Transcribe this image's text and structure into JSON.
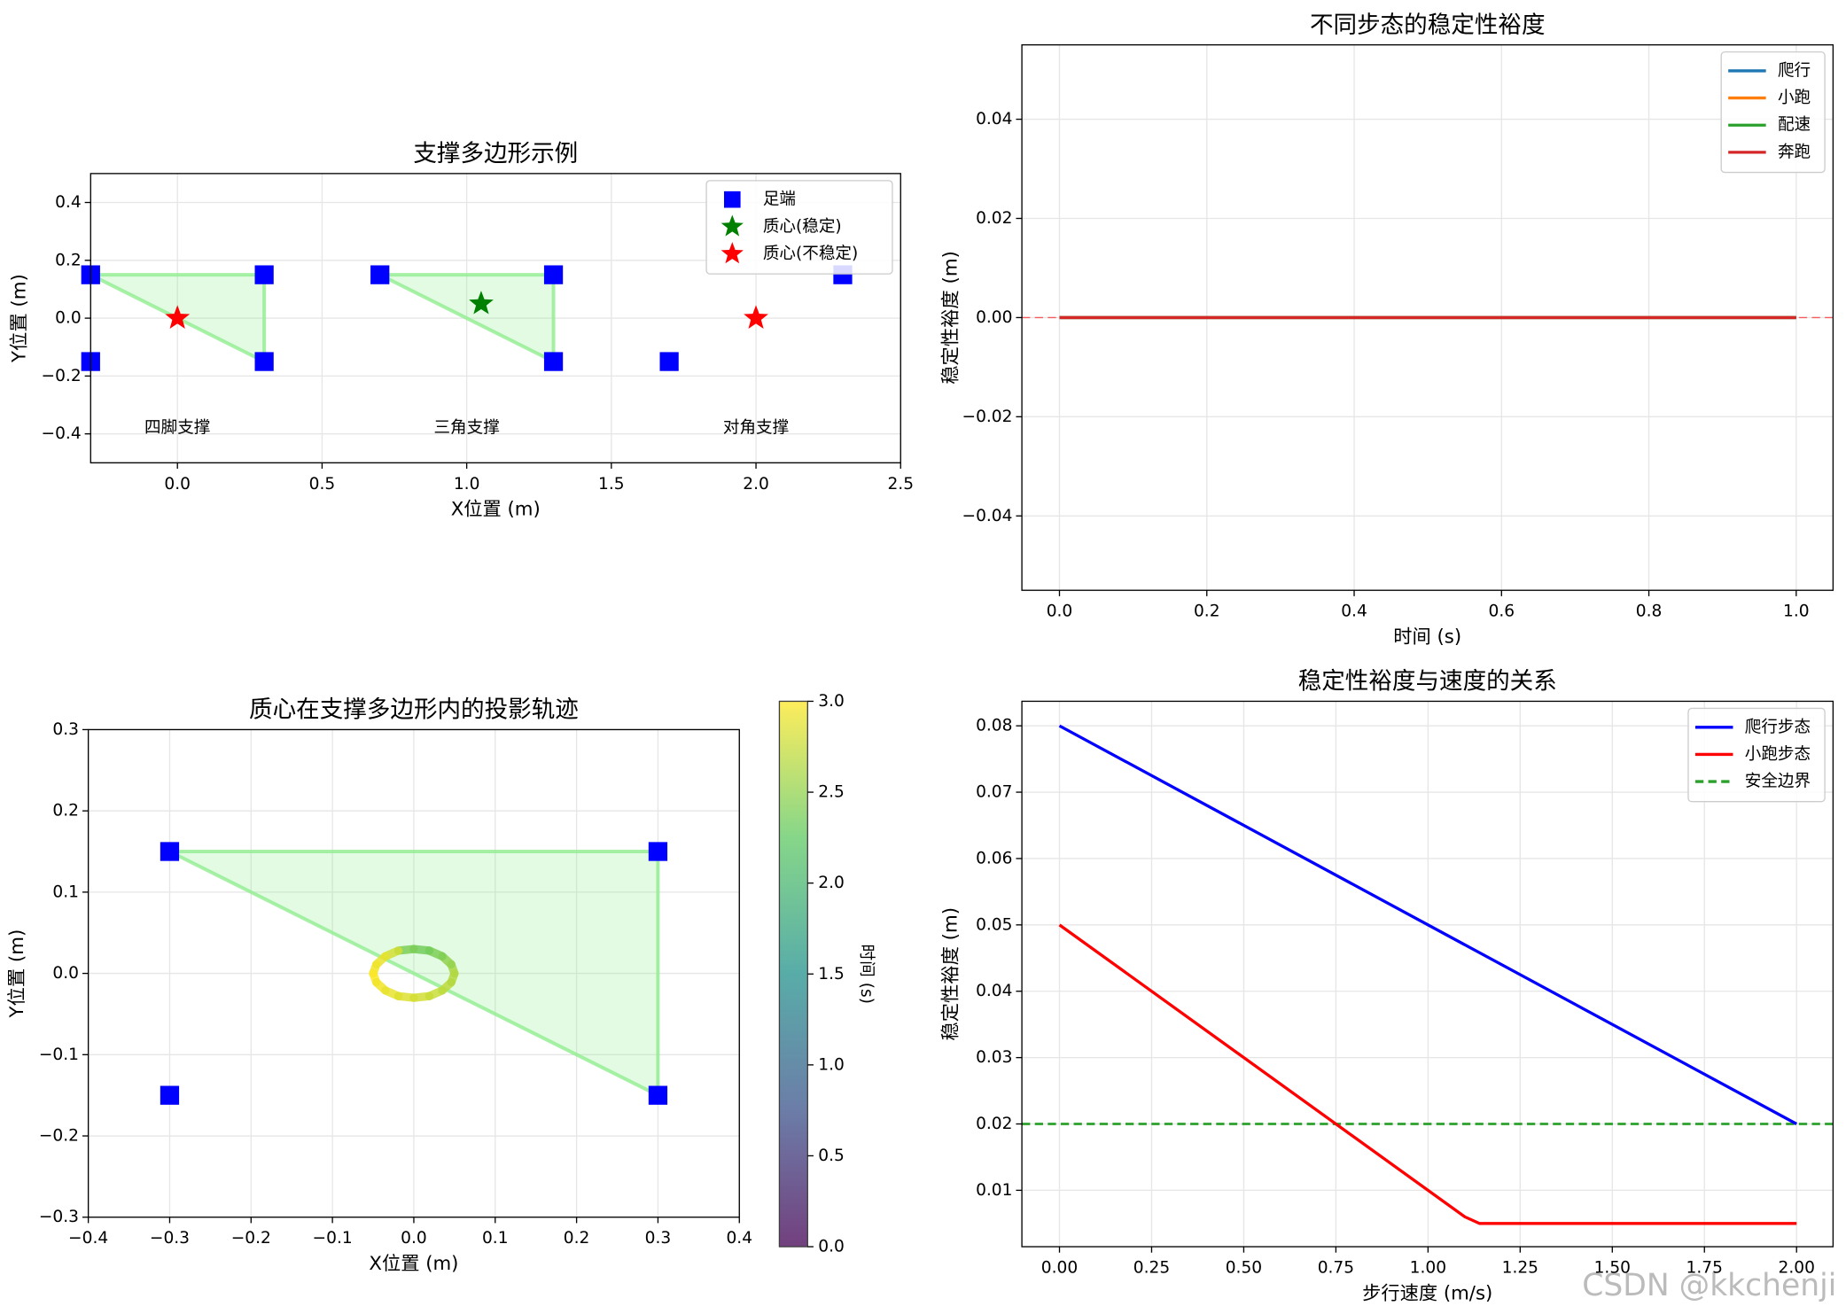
{
  "chart_data": [
    {
      "type": "scatter",
      "title": "支撑多边形示例",
      "xlabel": "X位置 (m)",
      "ylabel": "Y位置 (m)",
      "xlim": [
        -0.3,
        2.5
      ],
      "ylim": [
        -0.5,
        0.5
      ],
      "xticks": [
        {
          "value": 0,
          "label": "0.0"
        },
        {
          "value": 0.5,
          "label": "0.5"
        },
        {
          "value": 1,
          "label": "1.0"
        },
        1.5,
        {
          "value": 2,
          "label": "2.0"
        },
        2.5
      ],
      "yticks": [
        {
          "value": -0.4,
          "label": "−0.4"
        },
        {
          "value": -0.2,
          "label": "−0.2"
        },
        {
          "value": 0,
          "label": "0.0"
        },
        0.2,
        0.4
      ],
      "grid": true,
      "legend": "upper right",
      "polygon_color": "#90ee90",
      "polygons": [
        {
          "x": [
            -0.3,
            0.3,
            0.3
          ],
          "y": [
            0.15,
            0.15,
            -0.15
          ]
        },
        {
          "x": [
            0.7,
            1.3,
            1.3
          ],
          "y": [
            0.15,
            0.15,
            -0.15
          ]
        }
      ],
      "series": [
        {
          "name": "足端",
          "color": "#0000ff",
          "marker": "square",
          "x": [
            -0.3,
            0.3,
            0.3,
            -0.3,
            0.7,
            1.3,
            1.3,
            1.7,
            2.3
          ],
          "y": [
            0.15,
            0.15,
            -0.15,
            -0.15,
            0.15,
            0.15,
            -0.15,
            -0.15,
            0.15
          ]
        },
        {
          "name": "质心(稳定)",
          "color": "#008000",
          "marker": "star",
          "x": [
            1.05
          ],
          "y": [
            0.05
          ]
        },
        {
          "name": "质心(不稳定)",
          "color": "#ff0000",
          "marker": "star",
          "x": [
            0,
            2
          ],
          "y": [
            0,
            0
          ]
        }
      ],
      "annotations": [
        {
          "text": "四脚支撑",
          "x": 0,
          "y": -0.38
        },
        {
          "text": "三角支撑",
          "x": 1,
          "y": -0.38
        },
        {
          "text": "对角支撑",
          "x": 2,
          "y": -0.38
        }
      ]
    },
    {
      "type": "line",
      "title": "不同步态的稳定性裕度",
      "xlabel": "时间 (s)",
      "ylabel": "稳定性裕度 (m)",
      "xlim": [
        -0.051,
        1.05
      ],
      "ylim": [
        -0.055,
        0.055
      ],
      "xticks": [
        {
          "value": 0,
          "label": "0.0"
        },
        0.2,
        0.4,
        0.6,
        0.8,
        {
          "value": 1,
          "label": "1.0"
        }
      ],
      "yticks": [
        {
          "value": -0.04,
          "label": "−0.04"
        },
        {
          "value": -0.02,
          "label": "−0.02"
        },
        {
          "value": 0,
          "label": "0.00"
        },
        0.02,
        0.04
      ],
      "grid": true,
      "legend": "upper right",
      "x": [
        0,
        1
      ],
      "reference_line": {
        "value": 0,
        "color": "#ff0000",
        "style": "dashed"
      },
      "series": [
        {
          "name": "爬行",
          "color": "#1f77b4",
          "values": [
            0,
            0
          ]
        },
        {
          "name": "小跑",
          "color": "#ff7f0e",
          "values": [
            0,
            0
          ]
        },
        {
          "name": "配速",
          "color": "#2ca02c",
          "values": [
            0,
            0
          ]
        },
        {
          "name": "奔跑",
          "color": "#d62728",
          "values": [
            0,
            0
          ]
        }
      ]
    },
    {
      "type": "scatter",
      "title": "质心在支撑多边形内的投影轨迹",
      "xlabel": "X位置 (m)",
      "ylabel": "Y位置 (m)",
      "xlim": [
        -0.4,
        0.4
      ],
      "ylim": [
        -0.3,
        0.3
      ],
      "xticks": [
        {
          "value": -0.4,
          "label": "−0.4"
        },
        {
          "value": -0.3,
          "label": "−0.3"
        },
        {
          "value": -0.2,
          "label": "−0.2"
        },
        {
          "value": -0.1,
          "label": "−0.1"
        },
        {
          "value": 0,
          "label": "0.0"
        },
        0.1,
        0.2,
        0.3,
        0.4
      ],
      "yticks": [
        {
          "value": -0.3,
          "label": "−0.3"
        },
        {
          "value": -0.2,
          "label": "−0.2"
        },
        {
          "value": -0.1,
          "label": "−0.1"
        },
        {
          "value": 0,
          "label": "0.0"
        },
        0.1,
        0.2,
        0.3
      ],
      "grid": true,
      "polygon_color": "#90ee90",
      "polygons": [
        {
          "x": [
            -0.3,
            0.3,
            0.3
          ],
          "y": [
            0.15,
            0.15,
            -0.15
          ]
        }
      ],
      "series": [
        {
          "color": "#0000ff",
          "marker": "square",
          "x": [
            -0.3,
            0.3,
            0.3,
            -0.3
          ],
          "y": [
            0.15,
            0.15,
            -0.15,
            -0.15
          ]
        },
        {
          "marker": "trail",
          "colormap": "viridis",
          "x": [
            0.05,
            0.046,
            0.035,
            0.019,
            0,
            -0.019,
            -0.035,
            -0.046,
            -0.05,
            -0.046,
            -0.035,
            -0.019,
            0,
            0.019,
            0.035,
            0.046
          ],
          "y": [
            0,
            0.011,
            0.021,
            0.028,
            0.03,
            0.028,
            0.021,
            0.011,
            0,
            -0.011,
            -0.021,
            -0.028,
            -0.03,
            -0.028,
            -0.021,
            -0.011
          ],
          "c": [
            2.6,
            2.5,
            2.4,
            2.35,
            2.4,
            2.8,
            2.9,
            2.95,
            3.0,
            2.95,
            2.9,
            2.85,
            2.8,
            2.75,
            2.7,
            2.65
          ]
        }
      ],
      "colorbar": {
        "label": "时间 (s)",
        "lim": [
          0,
          3
        ],
        "colormap": "viridis",
        "ticks": [
          {
            "value": 0,
            "label": "0.0"
          },
          0.5,
          {
            "value": 1,
            "label": "1.0"
          },
          1.5,
          {
            "value": 2,
            "label": "2.0"
          },
          2.5,
          {
            "value": 3,
            "label": "3.0"
          }
        ]
      }
    },
    {
      "type": "line",
      "title": "稳定性裕度与速度的关系",
      "xlabel": "步行速度 (m/s)",
      "ylabel": "稳定性裕度 (m)",
      "xlim": [
        -0.102,
        2.099
      ],
      "ylim": [
        0.0015,
        0.0837
      ],
      "xticks": [
        {
          "value": 0,
          "label": "0.00"
        },
        0.25,
        {
          "value": 0.5,
          "label": "0.50"
        },
        0.75,
        {
          "value": 1,
          "label": "1.00"
        },
        1.25,
        {
          "value": 1.5,
          "label": "1.50"
        },
        1.75,
        {
          "value": 2,
          "label": "2.00"
        }
      ],
      "yticks": [
        0.01,
        0.02,
        0.03,
        0.04,
        0.05,
        0.06,
        0.07,
        0.08
      ],
      "grid": true,
      "legend": "upper right",
      "series": [
        {
          "name": "爬行步态",
          "color": "#0000ff",
          "x": [
            0,
            2
          ],
          "values": [
            0.08,
            0.02
          ]
        },
        {
          "name": "小跑步态",
          "color": "#ff0000",
          "x": [
            0,
            1.1,
            1.14,
            2
          ],
          "values": [
            0.05,
            0.006,
            0.005,
            0.005
          ]
        }
      ],
      "reference_line": {
        "name": "安全边界",
        "value": 0.02,
        "color": "#2ca02c",
        "style": "dashed"
      }
    }
  ],
  "watermark": "CSDN @kkchenji"
}
